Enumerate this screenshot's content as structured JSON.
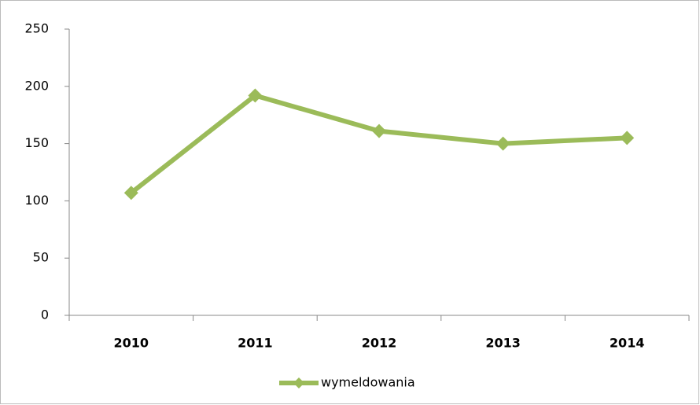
{
  "chart_data": {
    "type": "line",
    "categories": [
      "2010",
      "2011",
      "2012",
      "2013",
      "2014"
    ],
    "series": [
      {
        "name": "wymeldowania",
        "color": "#9bbb59",
        "values": [
          107,
          192,
          161,
          150,
          155
        ]
      }
    ],
    "ylim": [
      0,
      250
    ],
    "yticks": [
      0,
      50,
      100,
      150,
      200,
      250
    ],
    "grid": false,
    "legend": "bottom"
  }
}
